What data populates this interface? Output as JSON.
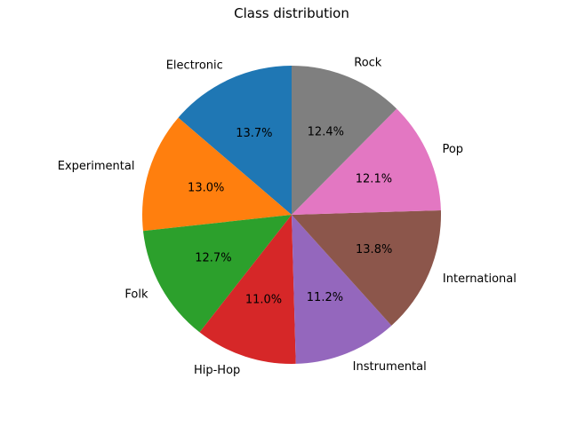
{
  "chart_data": {
    "type": "pie",
    "title": "Class distribution",
    "start_angle_deg": 90,
    "direction": "counterclockwise",
    "categories": [
      "Electronic",
      "Experimental",
      "Folk",
      "Hip-Hop",
      "Instrumental",
      "International",
      "Pop",
      "Rock"
    ],
    "values": [
      13.7,
      13.0,
      12.7,
      11.0,
      11.2,
      13.8,
      12.1,
      12.4
    ],
    "value_labels": [
      "13.7%",
      "13.0%",
      "12.7%",
      "11.0%",
      "11.2%",
      "13.8%",
      "12.1%",
      "12.4%"
    ],
    "colors": [
      "#1f77b4",
      "#ff7f0e",
      "#2ca02c",
      "#d62728",
      "#9467bd",
      "#8c564b",
      "#e377c2",
      "#7f7f7f"
    ],
    "legend": "none"
  }
}
